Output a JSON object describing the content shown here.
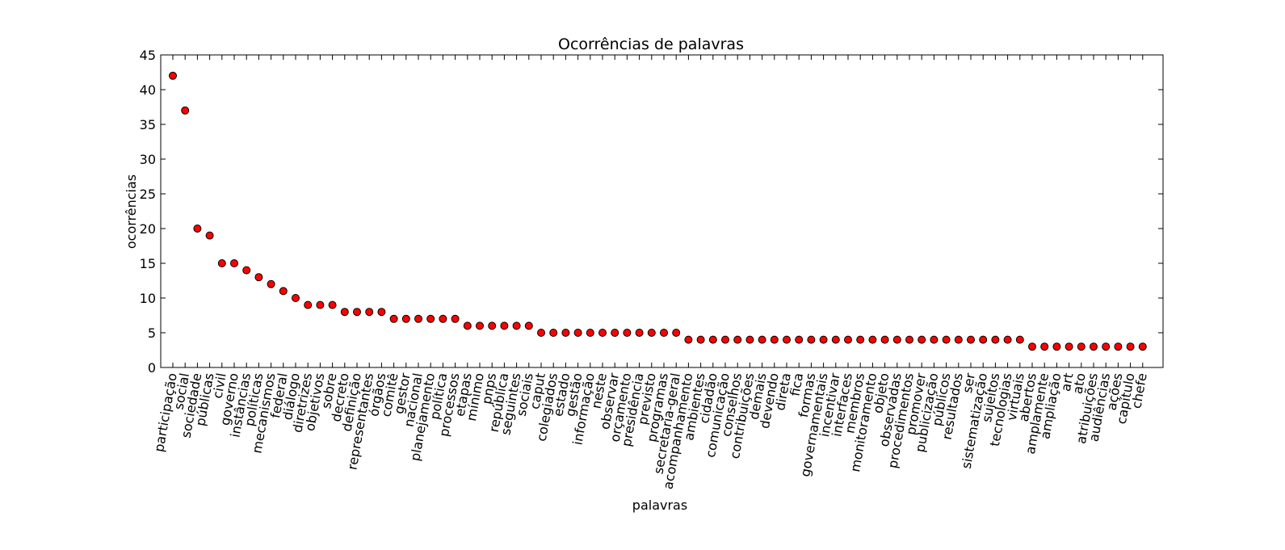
{
  "chart_data": {
    "type": "scatter",
    "title": "Ocorrências de palavras",
    "xlabel": "palavras",
    "ylabel": "ocorrências",
    "ylim": [
      0,
      45
    ],
    "yticks": [
      0,
      5,
      10,
      15,
      20,
      25,
      30,
      35,
      40,
      45
    ],
    "grid": false,
    "marker_color": "#ff0000",
    "marker_edge_color": "#000000",
    "categories": [
      "participação",
      "social",
      "sociedade",
      "públicas",
      "civil",
      "governo",
      "instâncias",
      "políticas",
      "mecanismos",
      "federal",
      "diálogo",
      "diretrizes",
      "objetivos",
      "sobre",
      "decreto",
      "definição",
      "representantes",
      "órgãos",
      "comitê",
      "gestor",
      "nacional",
      "planejamento",
      "política",
      "processos",
      "etapas",
      "mínimo",
      "pnps",
      "república",
      "seguintes",
      "sociais",
      "caput",
      "colegiados",
      "estado",
      "gestão",
      "informação",
      "neste",
      "observar",
      "orçamento",
      "presidência",
      "previsto",
      "programas",
      "secretaria-geral",
      "acompanhamento",
      "ambientes",
      "cidadão",
      "comunicação",
      "conselhos",
      "contribuições",
      "demais",
      "devendo",
      "direta",
      "fica",
      "formas",
      "governamentais",
      "incentivar",
      "interfaces",
      "membros",
      "monitoramento",
      "objeto",
      "observadas",
      "procedimentos",
      "promover",
      "publicização",
      "públicos",
      "resultados",
      "ser",
      "sistematização",
      "sujeitos",
      "tecnologias",
      "virtuais",
      "abertos",
      "amplamente",
      "ampliação",
      "art",
      "ato",
      "atribuições",
      "audiências",
      "ações",
      "capítulo",
      "chefe"
    ],
    "values": [
      42,
      37,
      20,
      19,
      15,
      15,
      14,
      13,
      12,
      11,
      10,
      9,
      9,
      9,
      8,
      8,
      8,
      8,
      7,
      7,
      7,
      7,
      7,
      7,
      6,
      6,
      6,
      6,
      6,
      6,
      5,
      5,
      5,
      5,
      5,
      5,
      5,
      5,
      5,
      5,
      5,
      5,
      4,
      4,
      4,
      4,
      4,
      4,
      4,
      4,
      4,
      4,
      4,
      4,
      4,
      4,
      4,
      4,
      4,
      4,
      4,
      4,
      4,
      4,
      4,
      4,
      4,
      4,
      4,
      4,
      3,
      3,
      3,
      3,
      3,
      3,
      3,
      3,
      3,
      3
    ]
  }
}
